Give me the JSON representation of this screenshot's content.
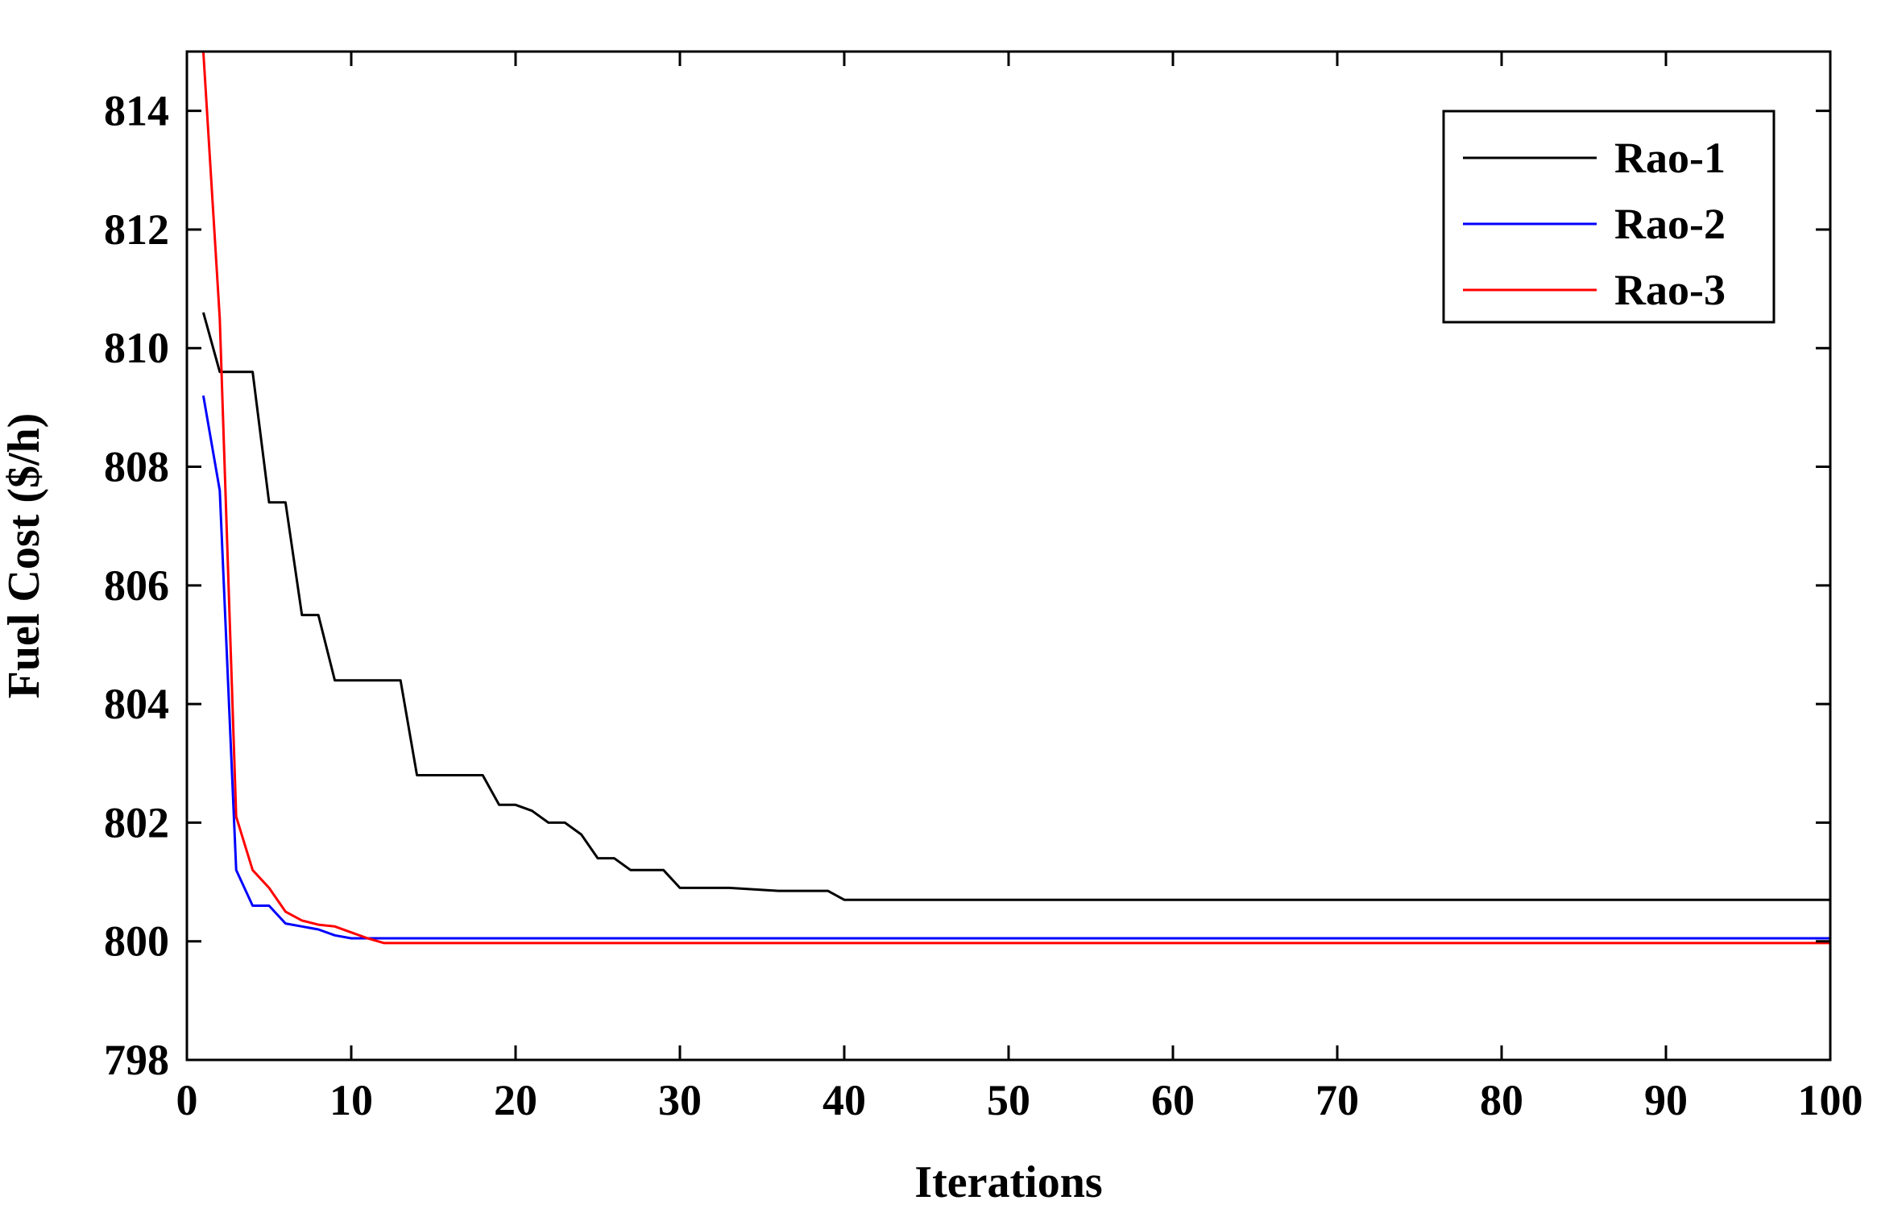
{
  "chart_data": {
    "type": "line",
    "title": "",
    "xlabel": "Iterations",
    "ylabel": "Fuel Cost ($/h)",
    "xlim": [
      0,
      100
    ],
    "ylim": [
      798,
      815
    ],
    "xticks": [
      0,
      10,
      20,
      30,
      40,
      50,
      60,
      70,
      80,
      90,
      100
    ],
    "yticks": [
      798,
      800,
      802,
      804,
      806,
      808,
      810,
      812,
      814
    ],
    "grid": false,
    "legend_position": "top-right",
    "series": [
      {
        "name": "Rao-1",
        "color": "#000000",
        "points": [
          [
            1,
            810.6
          ],
          [
            2,
            809.6
          ],
          [
            3,
            809.6
          ],
          [
            4,
            809.6
          ],
          [
            5,
            807.4
          ],
          [
            6,
            807.4
          ],
          [
            7,
            805.5
          ],
          [
            8,
            805.5
          ],
          [
            9,
            804.4
          ],
          [
            10,
            804.4
          ],
          [
            11,
            804.4
          ],
          [
            12,
            804.4
          ],
          [
            13,
            804.4
          ],
          [
            14,
            802.8
          ],
          [
            15,
            802.8
          ],
          [
            16,
            802.8
          ],
          [
            17,
            802.8
          ],
          [
            18,
            802.8
          ],
          [
            19,
            802.3
          ],
          [
            20,
            802.3
          ],
          [
            21,
            802.2
          ],
          [
            22,
            802.0
          ],
          [
            23,
            802.0
          ],
          [
            24,
            801.8
          ],
          [
            25,
            801.4
          ],
          [
            26,
            801.4
          ],
          [
            27,
            801.2
          ],
          [
            28,
            801.2
          ],
          [
            29,
            801.2
          ],
          [
            30,
            800.9
          ],
          [
            33,
            800.9
          ],
          [
            36,
            800.85
          ],
          [
            39,
            800.85
          ],
          [
            40,
            800.7
          ],
          [
            100,
            800.7
          ]
        ]
      },
      {
        "name": "Rao-2",
        "color": "#0000ff",
        "points": [
          [
            1,
            809.2
          ],
          [
            2,
            807.6
          ],
          [
            3,
            801.2
          ],
          [
            4,
            800.6
          ],
          [
            5,
            800.6
          ],
          [
            6,
            800.3
          ],
          [
            7,
            800.25
          ],
          [
            8,
            800.2
          ],
          [
            9,
            800.1
          ],
          [
            10,
            800.05
          ],
          [
            11,
            800.05
          ],
          [
            100,
            800.05
          ]
        ]
      },
      {
        "name": "Rao-3",
        "color": "#ff0000",
        "points": [
          [
            1,
            815.0
          ],
          [
            2,
            810.5
          ],
          [
            3,
            802.1
          ],
          [
            4,
            801.2
          ],
          [
            5,
            800.9
          ],
          [
            6,
            800.5
          ],
          [
            7,
            800.35
          ],
          [
            8,
            800.28
          ],
          [
            9,
            800.25
          ],
          [
            10,
            800.15
          ],
          [
            11,
            800.05
          ],
          [
            12,
            799.97
          ],
          [
            100,
            799.97
          ]
        ]
      }
    ]
  }
}
